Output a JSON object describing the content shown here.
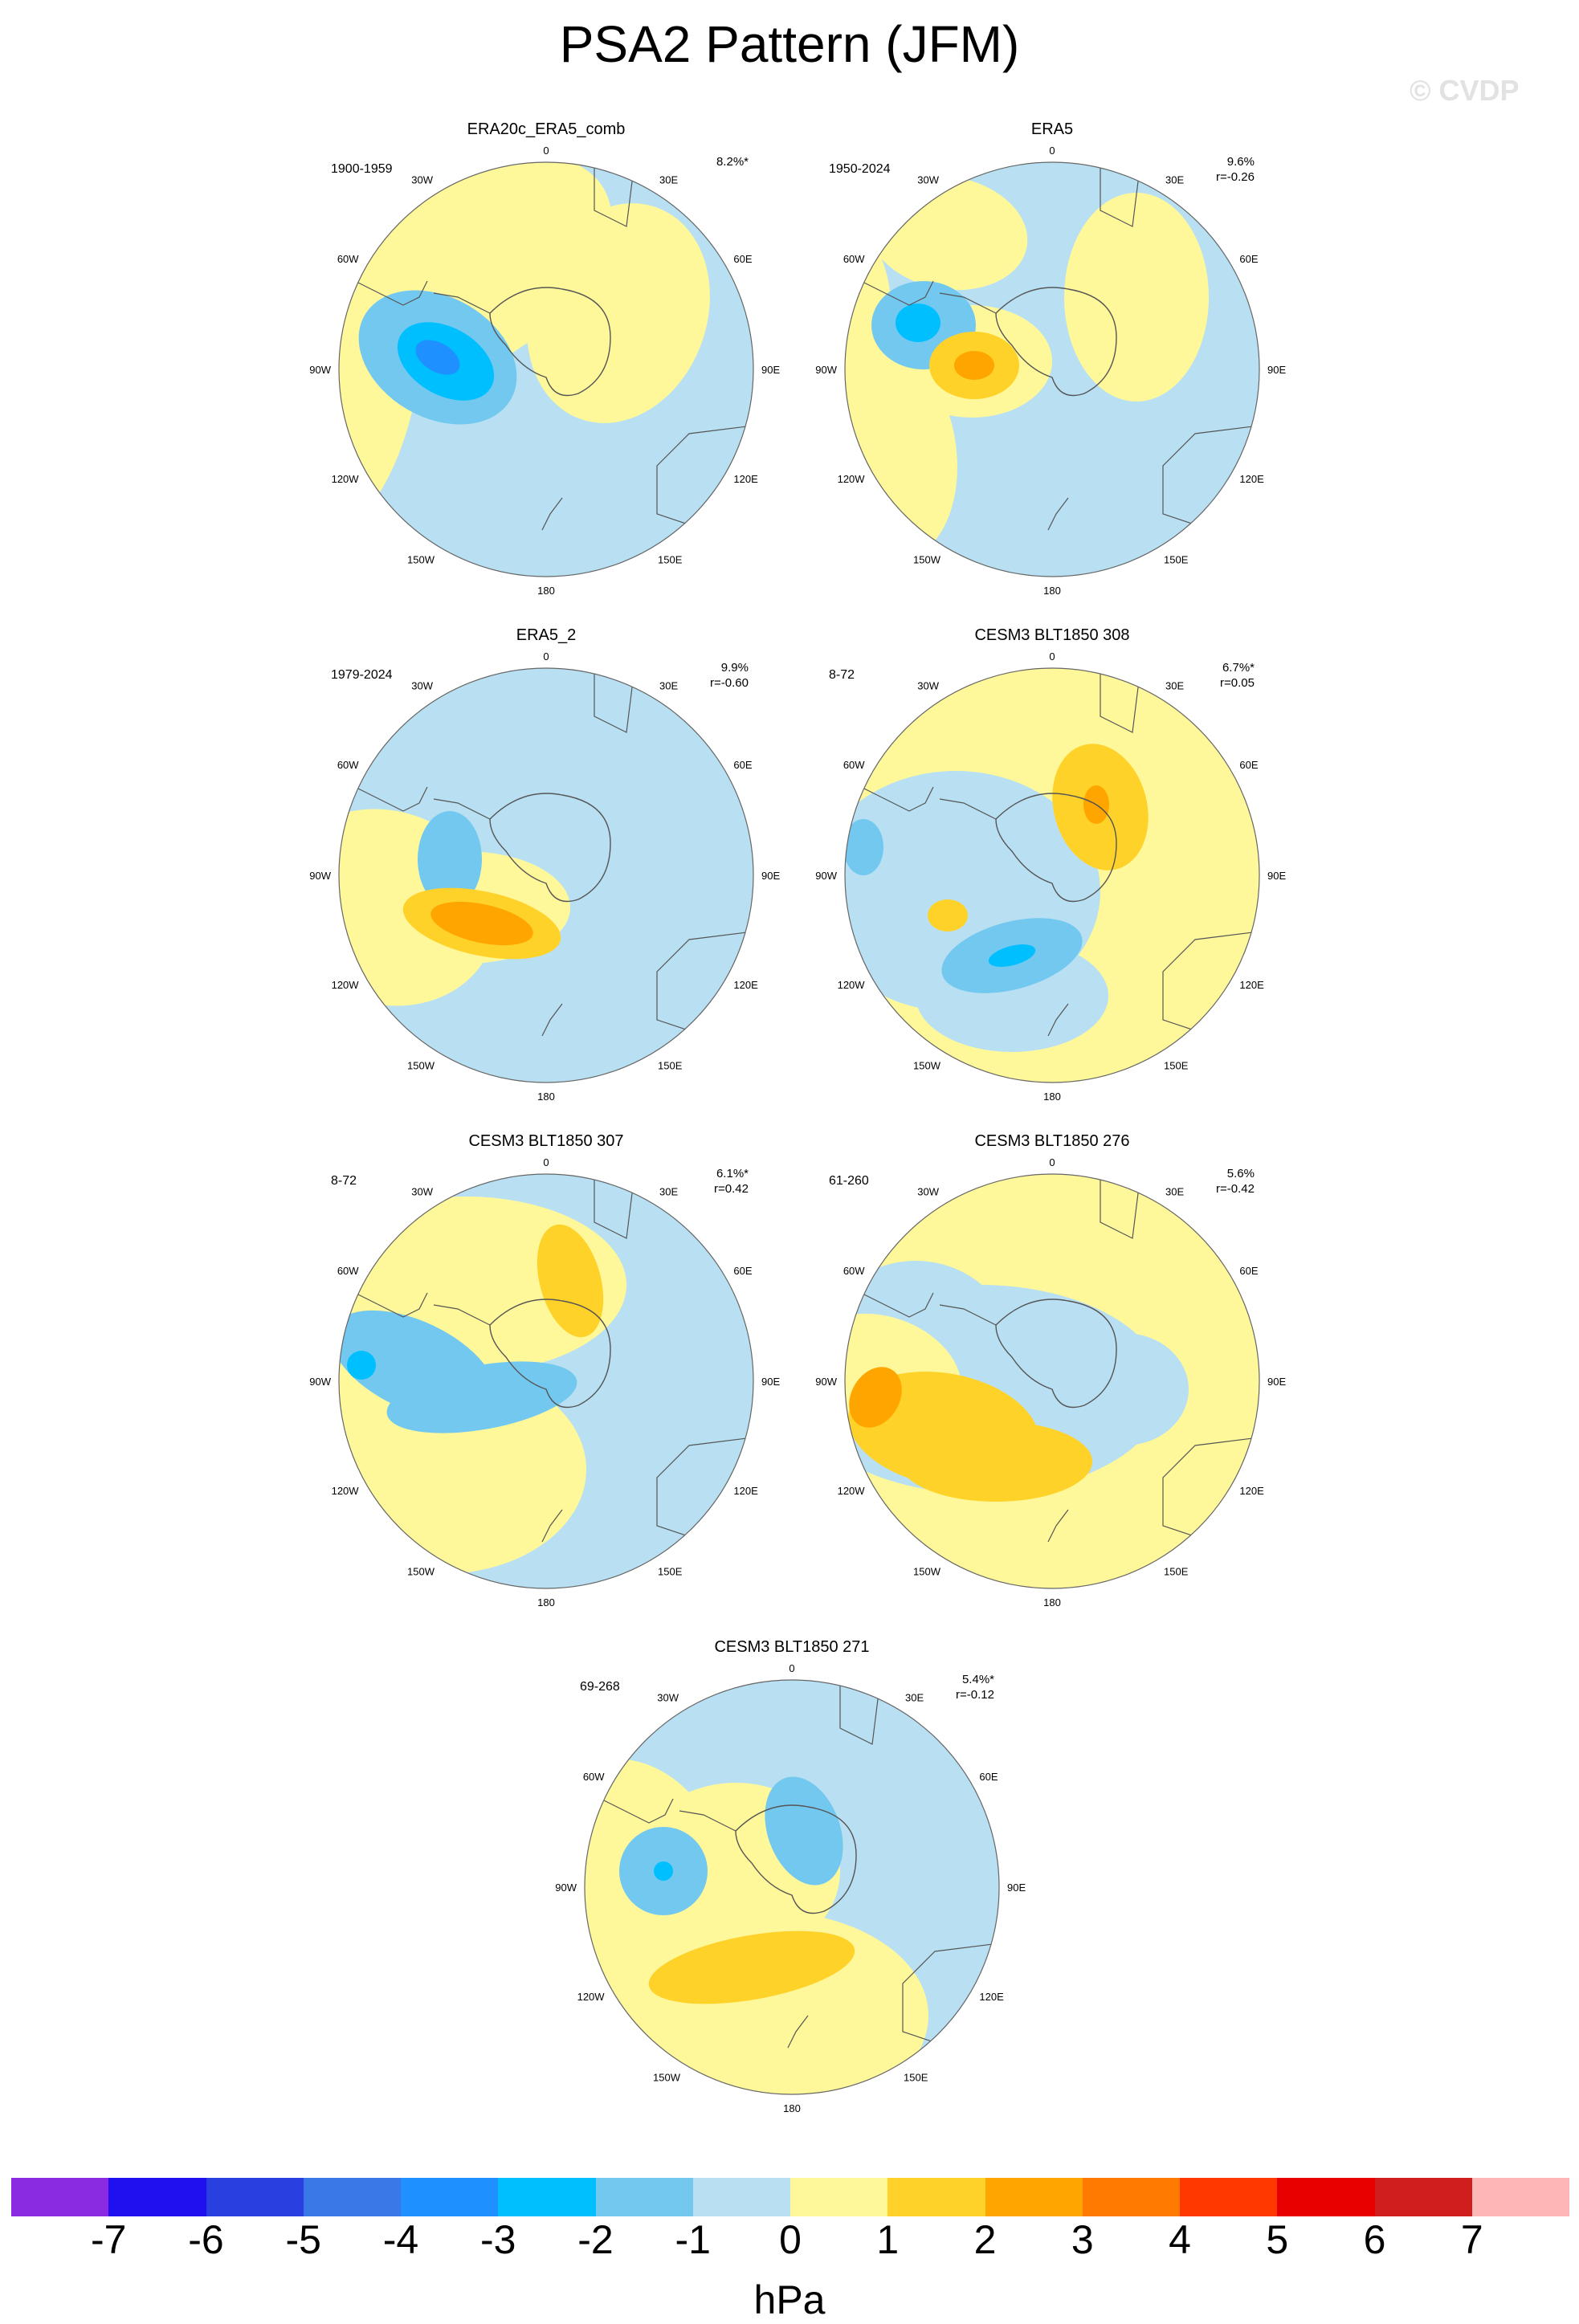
{
  "figure": {
    "title": "PSA2 Pattern (JFM)",
    "watermark": "© CVDP"
  },
  "panels": [
    {
      "title": "ERA20c_ERA5_comb",
      "period": "1900-1959",
      "pct": "8.2%*",
      "r": ""
    },
    {
      "title": "ERA5",
      "period": "1950-2024",
      "pct": "9.6%",
      "r": "r=-0.26"
    },
    {
      "title": "ERA5_2",
      "period": "1979-2024",
      "pct": "9.9%",
      "r": "r=-0.60"
    },
    {
      "title": "CESM3 BLT1850 308",
      "period": "8-72",
      "pct": "6.7%*",
      "r": "r=0.05"
    },
    {
      "title": "CESM3 BLT1850 307",
      "period": "8-72",
      "pct": "6.1%*",
      "r": "r=0.42"
    },
    {
      "title": "CESM3 BLT1850 276",
      "period": "61-260",
      "pct": "5.6%",
      "r": "r=-0.42"
    },
    {
      "title": "CESM3 BLT1850 271",
      "period": "69-268",
      "pct": "5.4%*",
      "r": "r=-0.12"
    }
  ],
  "map_labels": {
    "top": "0",
    "bottom": "180",
    "n30w": "30W",
    "n30e": "30E",
    "n60w": "60W",
    "n60e": "60E",
    "w90": "90W",
    "e90": "90E",
    "s120w": "120W",
    "s120e": "120E",
    "s150w": "150W",
    "s150e": "150E"
  },
  "colorbar": {
    "unit": "hPa",
    "ticks": [
      "-7",
      "-6",
      "-5",
      "-4",
      "-3",
      "-2",
      "-1",
      "0",
      "1",
      "2",
      "3",
      "4",
      "5",
      "6",
      "7"
    ],
    "colors": [
      "#8a2be2",
      "#2010f0",
      "#2a3fe0",
      "#3a78e8",
      "#1e90ff",
      "#00bfff",
      "#73c8f0",
      "#b8e0f2",
      "#fff89a",
      "#ffd22a",
      "#ffa500",
      "#ff7a00",
      "#ff3800",
      "#e80000",
      "#d01e1e",
      "#ffb6b6"
    ]
  },
  "palette": {
    "ocean_land_outline": "#555555",
    "neg1": "#b8e0f2",
    "neg2": "#73c8f0",
    "neg3": "#00bfff",
    "neg4": "#1e90ff",
    "pos1": "#fff89a",
    "pos2": "#ffd22a",
    "pos3": "#ffa500"
  }
}
